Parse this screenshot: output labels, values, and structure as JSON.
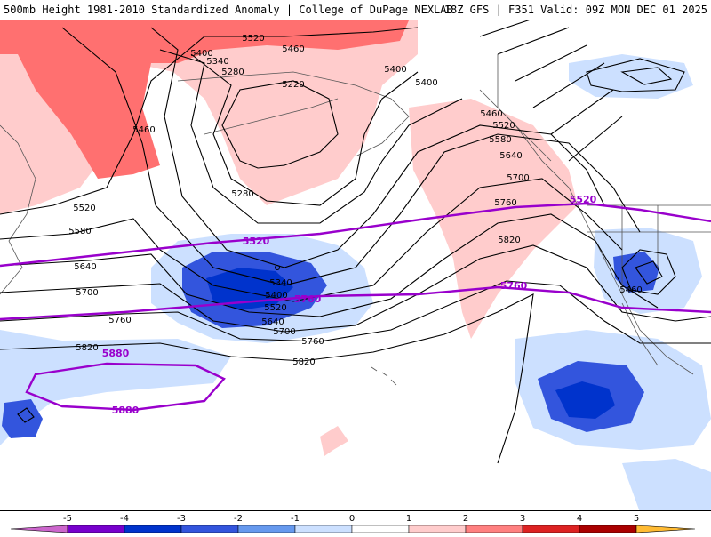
{
  "header": {
    "left": "500mb Height 1981-2010 Standardized Anomaly | College of DuPage NEXLAB",
    "right": "18Z GFS | F351 Valid: 09Z MON DEC 01 2025"
  },
  "contour_labels": {
    "c5520_top": "5520",
    "c5460_top": "5460",
    "c5400_top": "5400",
    "c5340_top": "5340",
    "c5280_top": "5280",
    "c5220_top": "5220",
    "c5400_r1": "5400",
    "c5400_r2": "5400",
    "c5460_left": "5460",
    "c5460_mid": "5460",
    "c5520_mid": "5520",
    "c5580_mid": "5580",
    "c5640_mid": "5640",
    "c5700_mid": "5700",
    "c5760_mid": "5760",
    "c5280_mid": "5280",
    "c5520_left": "5520",
    "c5580_left": "5580",
    "c5640_left": "5640",
    "c5700_left": "5700",
    "c5760_left": "5760",
    "c5820_left": "5820",
    "c5820_r": "5820",
    "c5820_c": "5820",
    "c5760_c": "5760",
    "c5700_c": "5700",
    "c5640_c": "5640",
    "c5520_c": "5520",
    "c5400_c": "5400",
    "c5340_c": "5340",
    "c5460_sw": "5460"
  },
  "thickness_labels": {
    "t5520_a": "5520",
    "t5520_b": "5520",
    "t5760_a": "5760",
    "t5760_b": "5760",
    "t5880_a": "5880",
    "t5880_b": "5880"
  },
  "legend": {
    "ticks": [
      "-5",
      "-4",
      "-3",
      "-2",
      "-1",
      "0",
      "1",
      "2",
      "3",
      "4",
      "5"
    ],
    "colors": [
      "#cc66cc",
      "#7700cc",
      "#0033cc",
      "#3355dd",
      "#6699ee",
      "#cce0ff",
      "#ffffff",
      "#ffcccc",
      "#ff8080",
      "#dd2222",
      "#aa0000",
      "#ff8800",
      "#ffbb33"
    ]
  }
}
